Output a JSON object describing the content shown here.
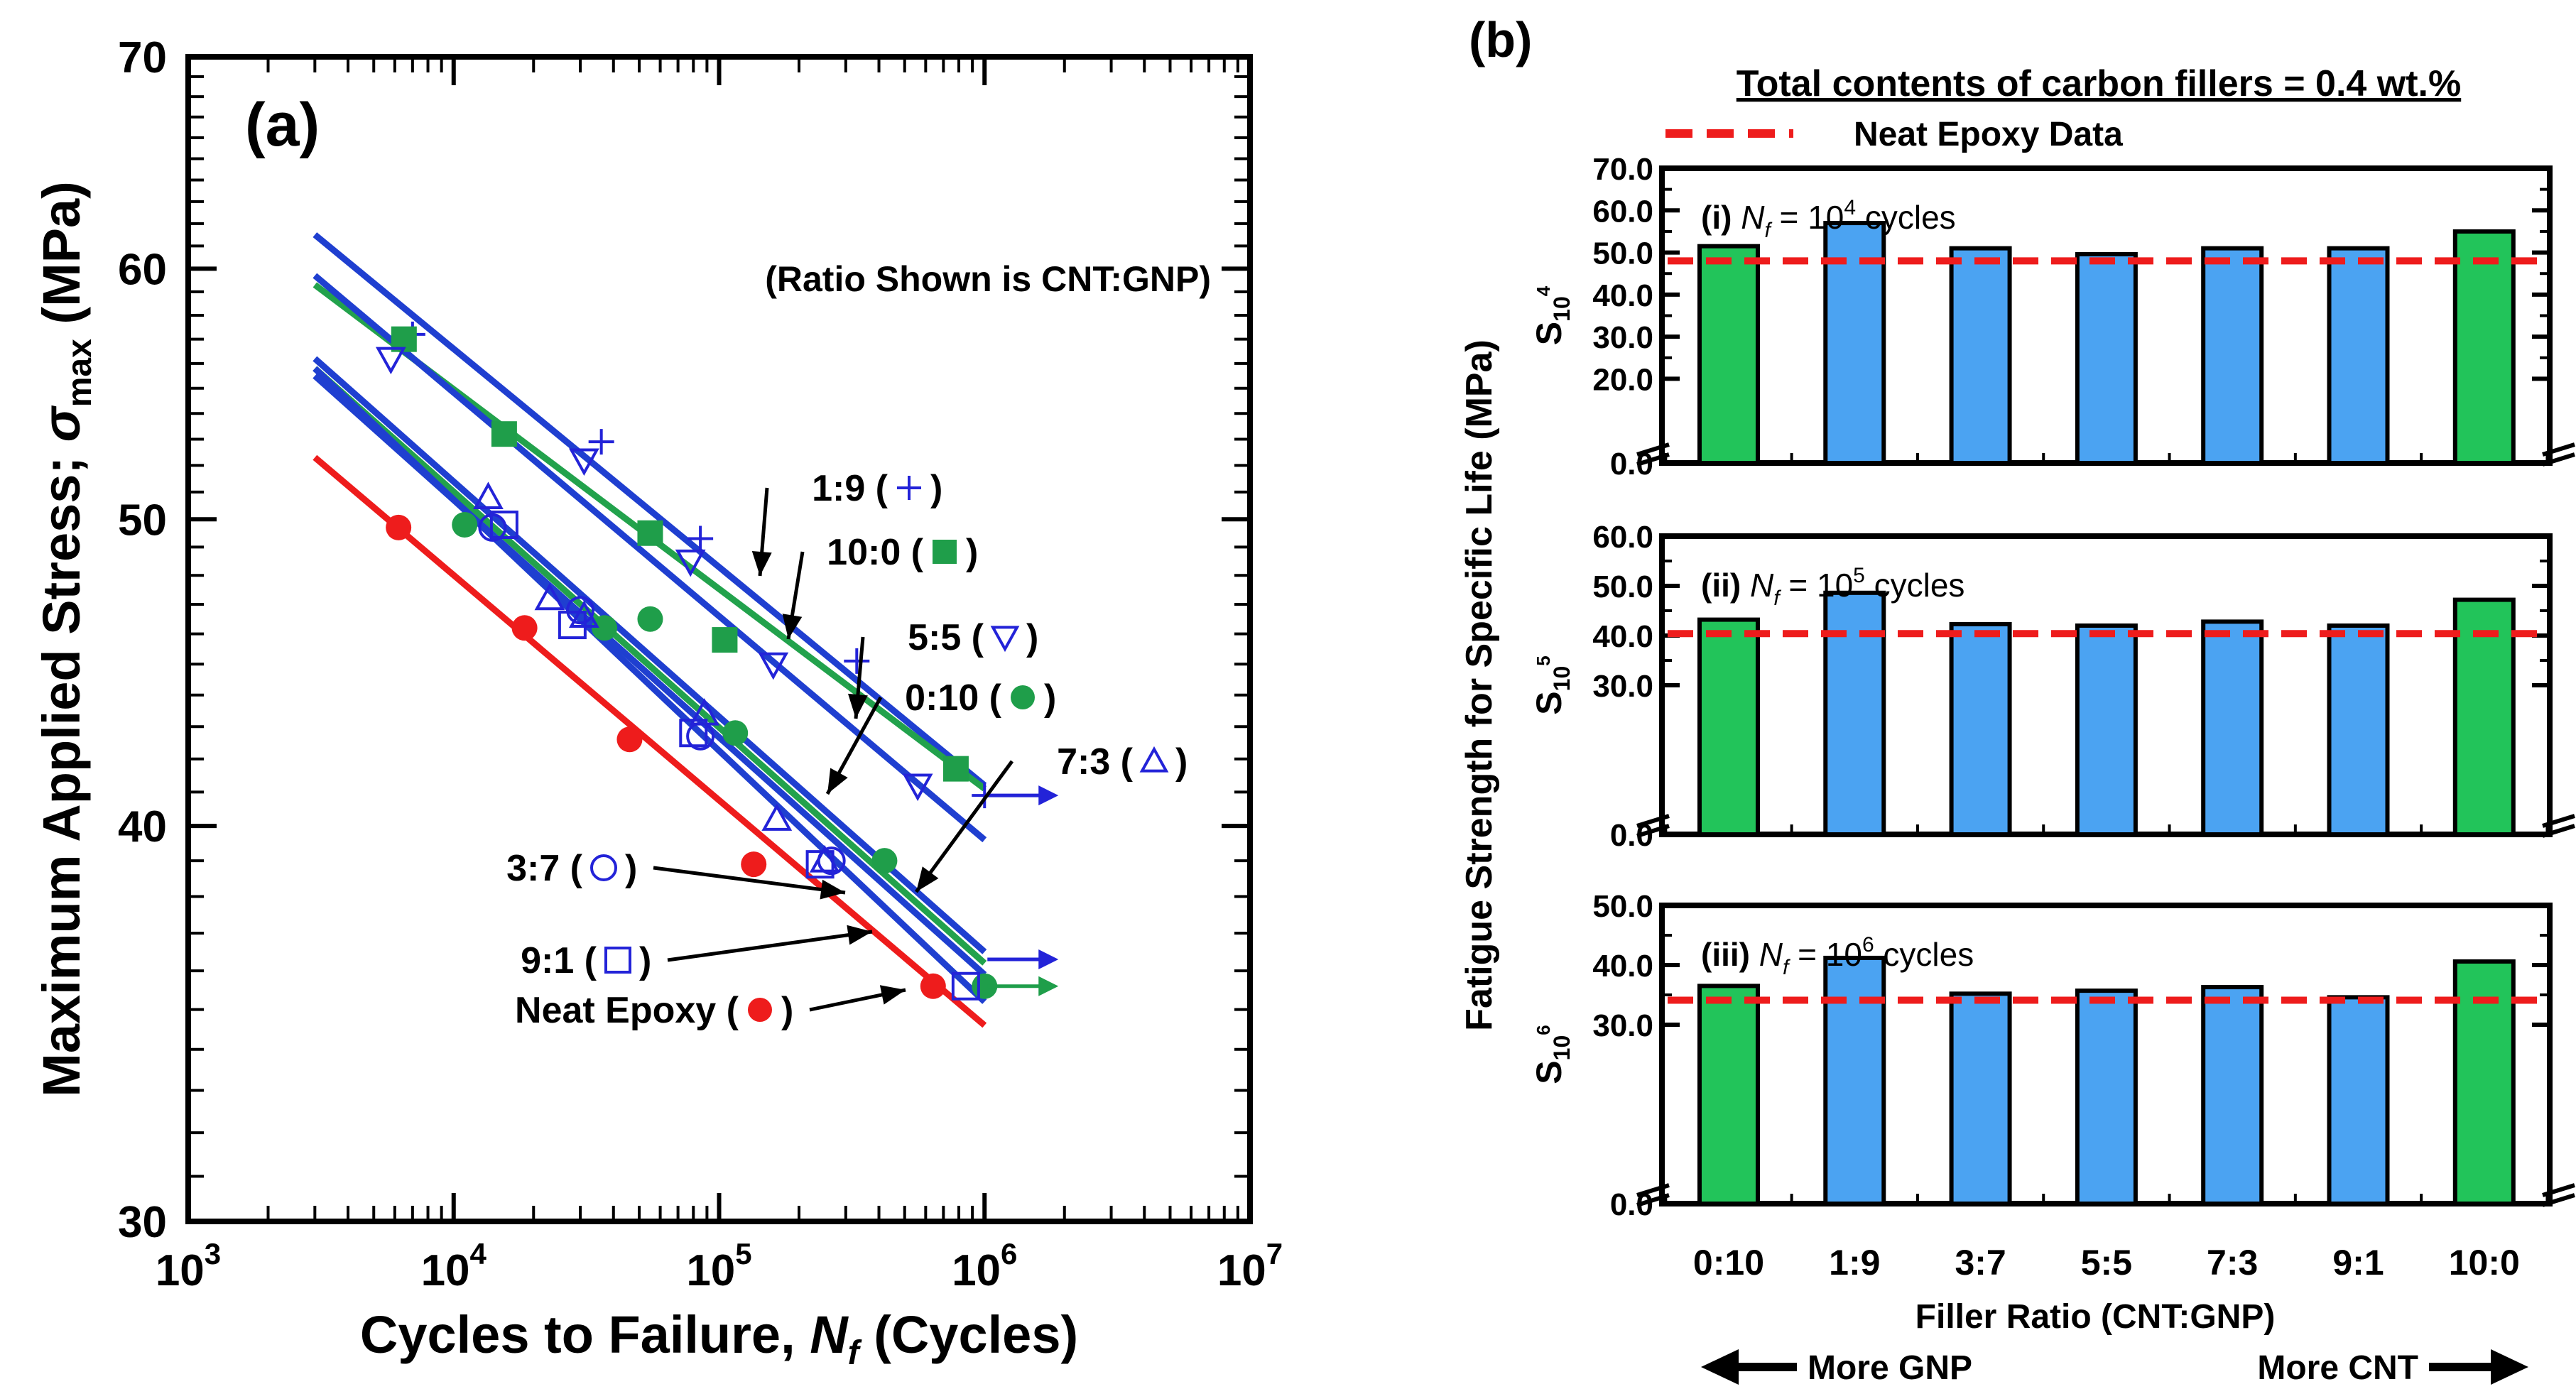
{
  "chart_data": [
    {
      "panel": "(a)",
      "type": "scatter",
      "title": "",
      "note": "(Ratio Shown is CNT:GNP)",
      "xlabel_prefix": "Cycles to Failure, ",
      "xlabel_var": "N",
      "xlabel_sub": "f",
      "xlabel_suffix": " (Cycles)",
      "ylabel_prefix": "Maximum Applied Stress; ",
      "ylabel_var": "σ",
      "ylabel_sub": "max",
      "ylabel_suffix": " (MPa)",
      "xscale": "log",
      "yscale": "log",
      "xlim": [
        1000,
        10000000
      ],
      "ylim": [
        30,
        70
      ],
      "x_ticks": [
        {
          "value": 1000,
          "base": "10",
          "exp": "3"
        },
        {
          "value": 10000,
          "base": "10",
          "exp": "4"
        },
        {
          "value": 100000,
          "base": "10",
          "exp": "5"
        },
        {
          "value": 1000000,
          "base": "10",
          "exp": "6"
        },
        {
          "value": 10000000,
          "base": "10",
          "exp": "7"
        }
      ],
      "y_ticks": [
        {
          "value": 30,
          "label": "30"
        },
        {
          "value": 40,
          "label": "40"
        },
        {
          "value": 50,
          "label": "50"
        },
        {
          "value": 60,
          "label": "60"
        },
        {
          "value": 70,
          "label": "70"
        }
      ],
      "series": [
        {
          "name": "1:9",
          "label_text": "1:9 (",
          "label_close": ")",
          "marker": "plus",
          "color": "#2323d8",
          "line_color": "#1f3fd0",
          "fit": [
            [
              3000,
              61.5
            ],
            [
              1000000,
              41.2
            ]
          ],
          "points": [
            [
              7000,
              57.2
            ],
            [
              36000,
              52.9
            ],
            [
              85000,
              49.3
            ],
            [
              330000,
              45.1
            ],
            [
              1000000,
              40.9
            ]
          ],
          "runout": [
            1000000,
            40.9
          ]
        },
        {
          "name": "10:0",
          "label_text": "10:0 (",
          "label_close": ")",
          "marker": "square-filled",
          "color": "#1f9e4a",
          "line_color": "#22a24c",
          "fit": [
            [
              3000,
              59.3
            ],
            [
              1000000,
              41.1
            ]
          ],
          "points": [
            [
              6500,
              57.0
            ],
            [
              15500,
              53.2
            ],
            [
              55000,
              49.5
            ],
            [
              105000,
              45.8
            ],
            [
              780000,
              41.7
            ]
          ]
        },
        {
          "name": "5:5",
          "label_text": "5:5 (",
          "label_close": ")",
          "marker": "triangle-down",
          "color": "#2323d8",
          "line_color": "#1f3fd0",
          "fit": [
            [
              3000,
              59.7
            ],
            [
              1000000,
              39.6
            ]
          ],
          "points": [
            [
              5800,
              56.2
            ],
            [
              31000,
              52.2
            ],
            [
              78000,
              48.5
            ],
            [
              160000,
              45.0
            ],
            [
              560000,
              41.2
            ]
          ]
        },
        {
          "name": "0:10",
          "label_text": "0:10 (",
          "label_close": ")",
          "marker": "circle-filled",
          "color": "#1f9e4a",
          "line_color": "#22a24c",
          "fit": [
            [
              3000,
              55.8
            ],
            [
              1000000,
              36.2
            ]
          ],
          "points": [
            [
              11000,
              49.8
            ],
            [
              37000,
              46.2
            ],
            [
              55000,
              46.5
            ],
            [
              115000,
              42.8
            ],
            [
              420000,
              39.0
            ],
            [
              1000000,
              35.6
            ]
          ],
          "runout": [
            1000000,
            35.6
          ]
        },
        {
          "name": "7:3",
          "label_text": "7:3 (",
          "label_close": ")",
          "marker": "triangle-up",
          "color": "#2323d8",
          "line_color": "#1f3fd0",
          "fit": [
            [
              3000,
              56.2
            ],
            [
              1000000,
              36.5
            ]
          ],
          "points": [
            [
              13500,
              50.8
            ],
            [
              23000,
              47.2
            ],
            [
              31000,
              46.6
            ],
            [
              88000,
              43.4
            ],
            [
              165000,
              40.2
            ],
            [
              250000,
              39.0
            ]
          ]
        },
        {
          "name": "3:7",
          "label_text": "3:7 (",
          "label_close": ")",
          "marker": "circle-open",
          "color": "#2323d8",
          "line_color": "#1f3fd0",
          "fit": [
            [
              3000,
              55.8
            ],
            [
              1000000,
              35.2
            ]
          ],
          "points": [
            [
              14000,
              49.7
            ],
            [
              30000,
              46.8
            ],
            [
              85000,
              42.7
            ],
            [
              265000,
              39.0
            ]
          ]
        },
        {
          "name": "9:1",
          "label_text": "9:1 (",
          "label_close": ")",
          "marker": "square-open",
          "color": "#2323d8",
          "line_color": "#1f3fd0",
          "fit": [
            [
              3000,
              55.5
            ],
            [
              1000000,
              35.9
            ]
          ],
          "points": [
            [
              15500,
              49.8
            ],
            [
              28000,
              46.3
            ],
            [
              80000,
              42.8
            ],
            [
              240000,
              38.9
            ],
            [
              850000,
              35.6
            ]
          ],
          "runout": [
            1000000,
            36.3
          ]
        },
        {
          "name": "Neat Epoxy",
          "label_text": "Neat Epoxy (",
          "label_close": ")",
          "marker": "circle-filled",
          "color": "#ee1c1c",
          "line_color": "#ee1c1c",
          "fit": [
            [
              3000,
              52.3
            ],
            [
              1000000,
              34.6
            ]
          ],
          "points": [
            [
              6200,
              49.7
            ],
            [
              18500,
              46.2
            ],
            [
              46000,
              42.6
            ],
            [
              135000,
              38.9
            ],
            [
              640000,
              35.6
            ]
          ]
        }
      ]
    },
    {
      "panel": "(b)",
      "type": "bar",
      "title": "Total contents of carbon fillers = 0.4 wt.%",
      "legend": "Neat Epoxy Data",
      "ylabel": "Fatigue Strength for Specific Life (MPa)",
      "xlabel": "Filler Ratio (CNT:GNP)",
      "categories": [
        "0:10",
        "1:9",
        "3:7",
        "5:5",
        "7:3",
        "9:1",
        "10:0"
      ],
      "bar_colors": [
        "#22c45a",
        "#4ba3f2",
        "#4ba3f2",
        "#4ba3f2",
        "#4ba3f2",
        "#4ba3f2",
        "#22c45a"
      ],
      "arrow_left": "More GNP",
      "arrow_right": "More CNT",
      "subplots": [
        {
          "tag": "(i) ",
          "var": "N",
          "sub": "f",
          "mid": " = 10",
          "exp": "4",
          "tail": " cycles",
          "ylabel_main": "S",
          "ylabel_sub": "10",
          "ylabel_sup": "4",
          "ylim": [
            0,
            70
          ],
          "yticks": [
            "0.0",
            "20.0",
            "30.0",
            "40.0",
            "50.0",
            "60.0",
            "70.0"
          ],
          "ytick_values": [
            0,
            20,
            30,
            40,
            50,
            60,
            70
          ],
          "values": [
            51.5,
            57.0,
            51.0,
            49.6,
            51.0,
            51.0,
            55.0
          ],
          "neat_epoxy": 48.0
        },
        {
          "tag": "(ii) ",
          "var": "N",
          "sub": "f",
          "mid": " = 10",
          "exp": "5",
          "tail": " cycles",
          "ylabel_main": "S",
          "ylabel_sub": "10",
          "ylabel_sup": "5",
          "ylim": [
            0,
            60
          ],
          "yticks": [
            "0.0",
            "30.0",
            "40.0",
            "50.0",
            "60.0"
          ],
          "ytick_values": [
            0,
            30,
            40,
            50,
            60
          ],
          "values": [
            43.2,
            48.6,
            42.3,
            42.0,
            42.8,
            42.0,
            47.2
          ],
          "neat_epoxy": 40.4
        },
        {
          "tag": "(iii) ",
          "var": "N",
          "sub": "f",
          "mid": " = 10",
          "exp": "6",
          "tail": " cycles",
          "ylabel_main": "S",
          "ylabel_sub": "10",
          "ylabel_sup": "6",
          "ylim": [
            0,
            50
          ],
          "yticks": [
            "0.0",
            "30.0",
            "40.0",
            "50.0"
          ],
          "ytick_values": [
            0,
            30,
            40,
            50
          ],
          "values": [
            36.5,
            41.2,
            35.2,
            35.7,
            36.3,
            34.6,
            40.6
          ],
          "neat_epoxy": 34.1
        }
      ]
    }
  ]
}
